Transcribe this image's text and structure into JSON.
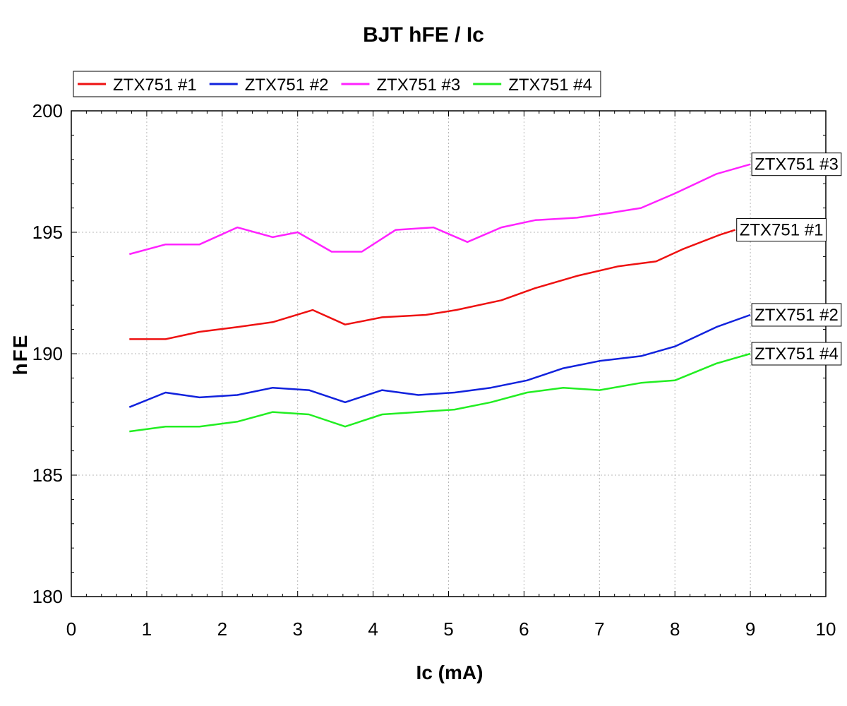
{
  "chart_data": {
    "type": "line",
    "title": "BJT hFE / Ic",
    "xlabel": "Ic (mA)",
    "ylabel": "hFE",
    "xlim": [
      0,
      10
    ],
    "ylim": [
      180,
      200
    ],
    "xticks": [
      "0",
      "1",
      "2",
      "3",
      "4",
      "5",
      "6",
      "7",
      "8",
      "9",
      "10"
    ],
    "yticks": [
      "180",
      "185",
      "190",
      "195",
      "200"
    ],
    "grid": true,
    "legend_position": "top-left",
    "x": [
      0.77,
      1.25,
      1.7,
      2.2,
      2.67,
      3.15,
      3.63,
      4.12,
      4.6,
      5.08,
      5.56,
      6.04,
      6.52,
      7.0,
      7.55,
      8.0,
      8.55,
      9.0
    ],
    "series": [
      {
        "name": "ZTX751 #1",
        "color": "#ee1111",
        "end_label": "ZTX751 #1",
        "x": [
          0.77,
          1.25,
          1.7,
          2.2,
          2.67,
          3.2,
          3.63,
          4.12,
          4.7,
          5.1,
          5.7,
          6.15,
          6.7,
          7.25,
          7.75,
          8.1,
          8.6,
          8.8
        ],
        "values": [
          190.6,
          190.6,
          190.9,
          191.1,
          191.3,
          191.8,
          191.2,
          191.5,
          191.6,
          191.8,
          192.2,
          192.7,
          193.2,
          193.6,
          193.8,
          194.3,
          194.9,
          195.1
        ]
      },
      {
        "name": "ZTX751 #2",
        "color": "#1122dd",
        "end_label": "ZTX751 #2",
        "x": [
          0.77,
          1.25,
          1.7,
          2.2,
          2.67,
          3.15,
          3.63,
          4.12,
          4.6,
          5.08,
          5.56,
          6.04,
          6.52,
          7.0,
          7.55,
          8.0,
          8.55,
          9.0
        ],
        "values": [
          187.8,
          188.4,
          188.2,
          188.3,
          188.6,
          188.5,
          188.0,
          188.5,
          188.3,
          188.4,
          188.6,
          188.9,
          189.4,
          189.7,
          189.9,
          190.3,
          191.1,
          191.6
        ]
      },
      {
        "name": "ZTX751 #3",
        "color": "#ff22ff",
        "end_label": "ZTX751 #3",
        "x": [
          0.77,
          1.25,
          1.7,
          2.2,
          2.67,
          3.0,
          3.45,
          3.85,
          4.3,
          4.8,
          5.25,
          5.7,
          6.15,
          6.7,
          7.15,
          7.55,
          8.0,
          8.55,
          9.0
        ],
        "values": [
          194.1,
          194.5,
          194.5,
          195.2,
          194.8,
          195.0,
          194.2,
          194.2,
          195.1,
          195.2,
          194.6,
          195.2,
          195.5,
          195.6,
          195.8,
          196.0,
          196.6,
          197.4,
          197.8
        ]
      },
      {
        "name": "ZTX751 #4",
        "color": "#22ee22",
        "end_label": "ZTX751 #4",
        "x": [
          0.77,
          1.25,
          1.7,
          2.2,
          2.67,
          3.15,
          3.63,
          4.12,
          4.6,
          5.08,
          5.56,
          6.04,
          6.52,
          7.0,
          7.55,
          8.0,
          8.55,
          9.0
        ],
        "values": [
          186.8,
          187.0,
          187.0,
          187.2,
          187.6,
          187.5,
          187.0,
          187.5,
          187.6,
          187.7,
          188.0,
          188.4,
          188.6,
          188.5,
          188.8,
          188.9,
          189.6,
          190.0
        ]
      }
    ]
  }
}
